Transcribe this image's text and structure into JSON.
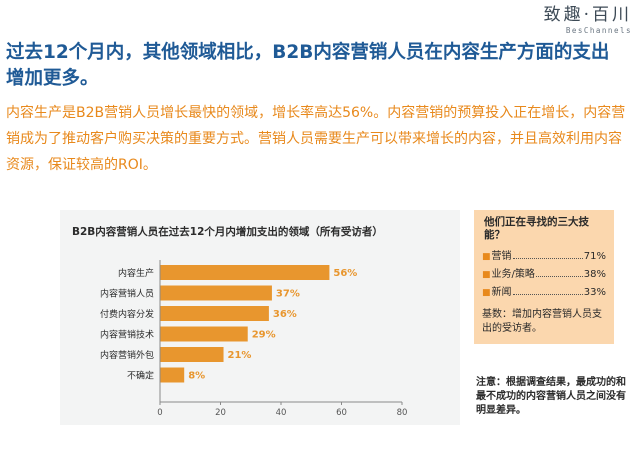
{
  "brand": {
    "name": "致趣·百川",
    "sub": "BesChannels"
  },
  "headline": "过去12个月内，其他领域相比，B2B内容营销人员在内容生产方面的支出增加更多。",
  "intro": "内容生产是B2B营销人员增长最快的领域，增长率高达56%。内容营销的预算投入正在增长，内容营销成为了推动客户购买决策的重要方式。营销人员需要生产可以带来增长的内容，并且高效利用内容资源，保证较高的ROI。",
  "colors": {
    "accent": "#e8891c",
    "headline": "#1f5a96",
    "bar": "#e8962e"
  },
  "chart_data": {
    "type": "bar",
    "orientation": "horizontal",
    "title": "B2B内容营销人员在过去12个月内增加支出的领域（所有受访者）",
    "categories": [
      "内容生产",
      "内容营销人员",
      "付费内容分发",
      "内容营销技术",
      "内容营销外包",
      "不确定"
    ],
    "values": [
      56,
      37,
      36,
      29,
      21,
      8
    ],
    "value_labels": [
      "56%",
      "37%",
      "36%",
      "29%",
      "21%",
      "8%"
    ],
    "xlim": [
      0,
      80
    ],
    "xticks": [
      "0",
      "20",
      "40",
      "60",
      "80"
    ],
    "xlabel": "",
    "ylabel": "",
    "grid": false
  },
  "sidebar": {
    "title": "他们正在寻找的三大技能？",
    "items": [
      {
        "label": "营销",
        "value": "71%"
      },
      {
        "label": "业务/策略",
        "value": "38%"
      },
      {
        "label": "新闻",
        "value": "33%"
      }
    ],
    "base": "基数：增加内容营销人员支出的受访者。"
  },
  "note": "注意：根据调查结果，最成功的和最不成功的内容营销人员之间没有明显差异。"
}
